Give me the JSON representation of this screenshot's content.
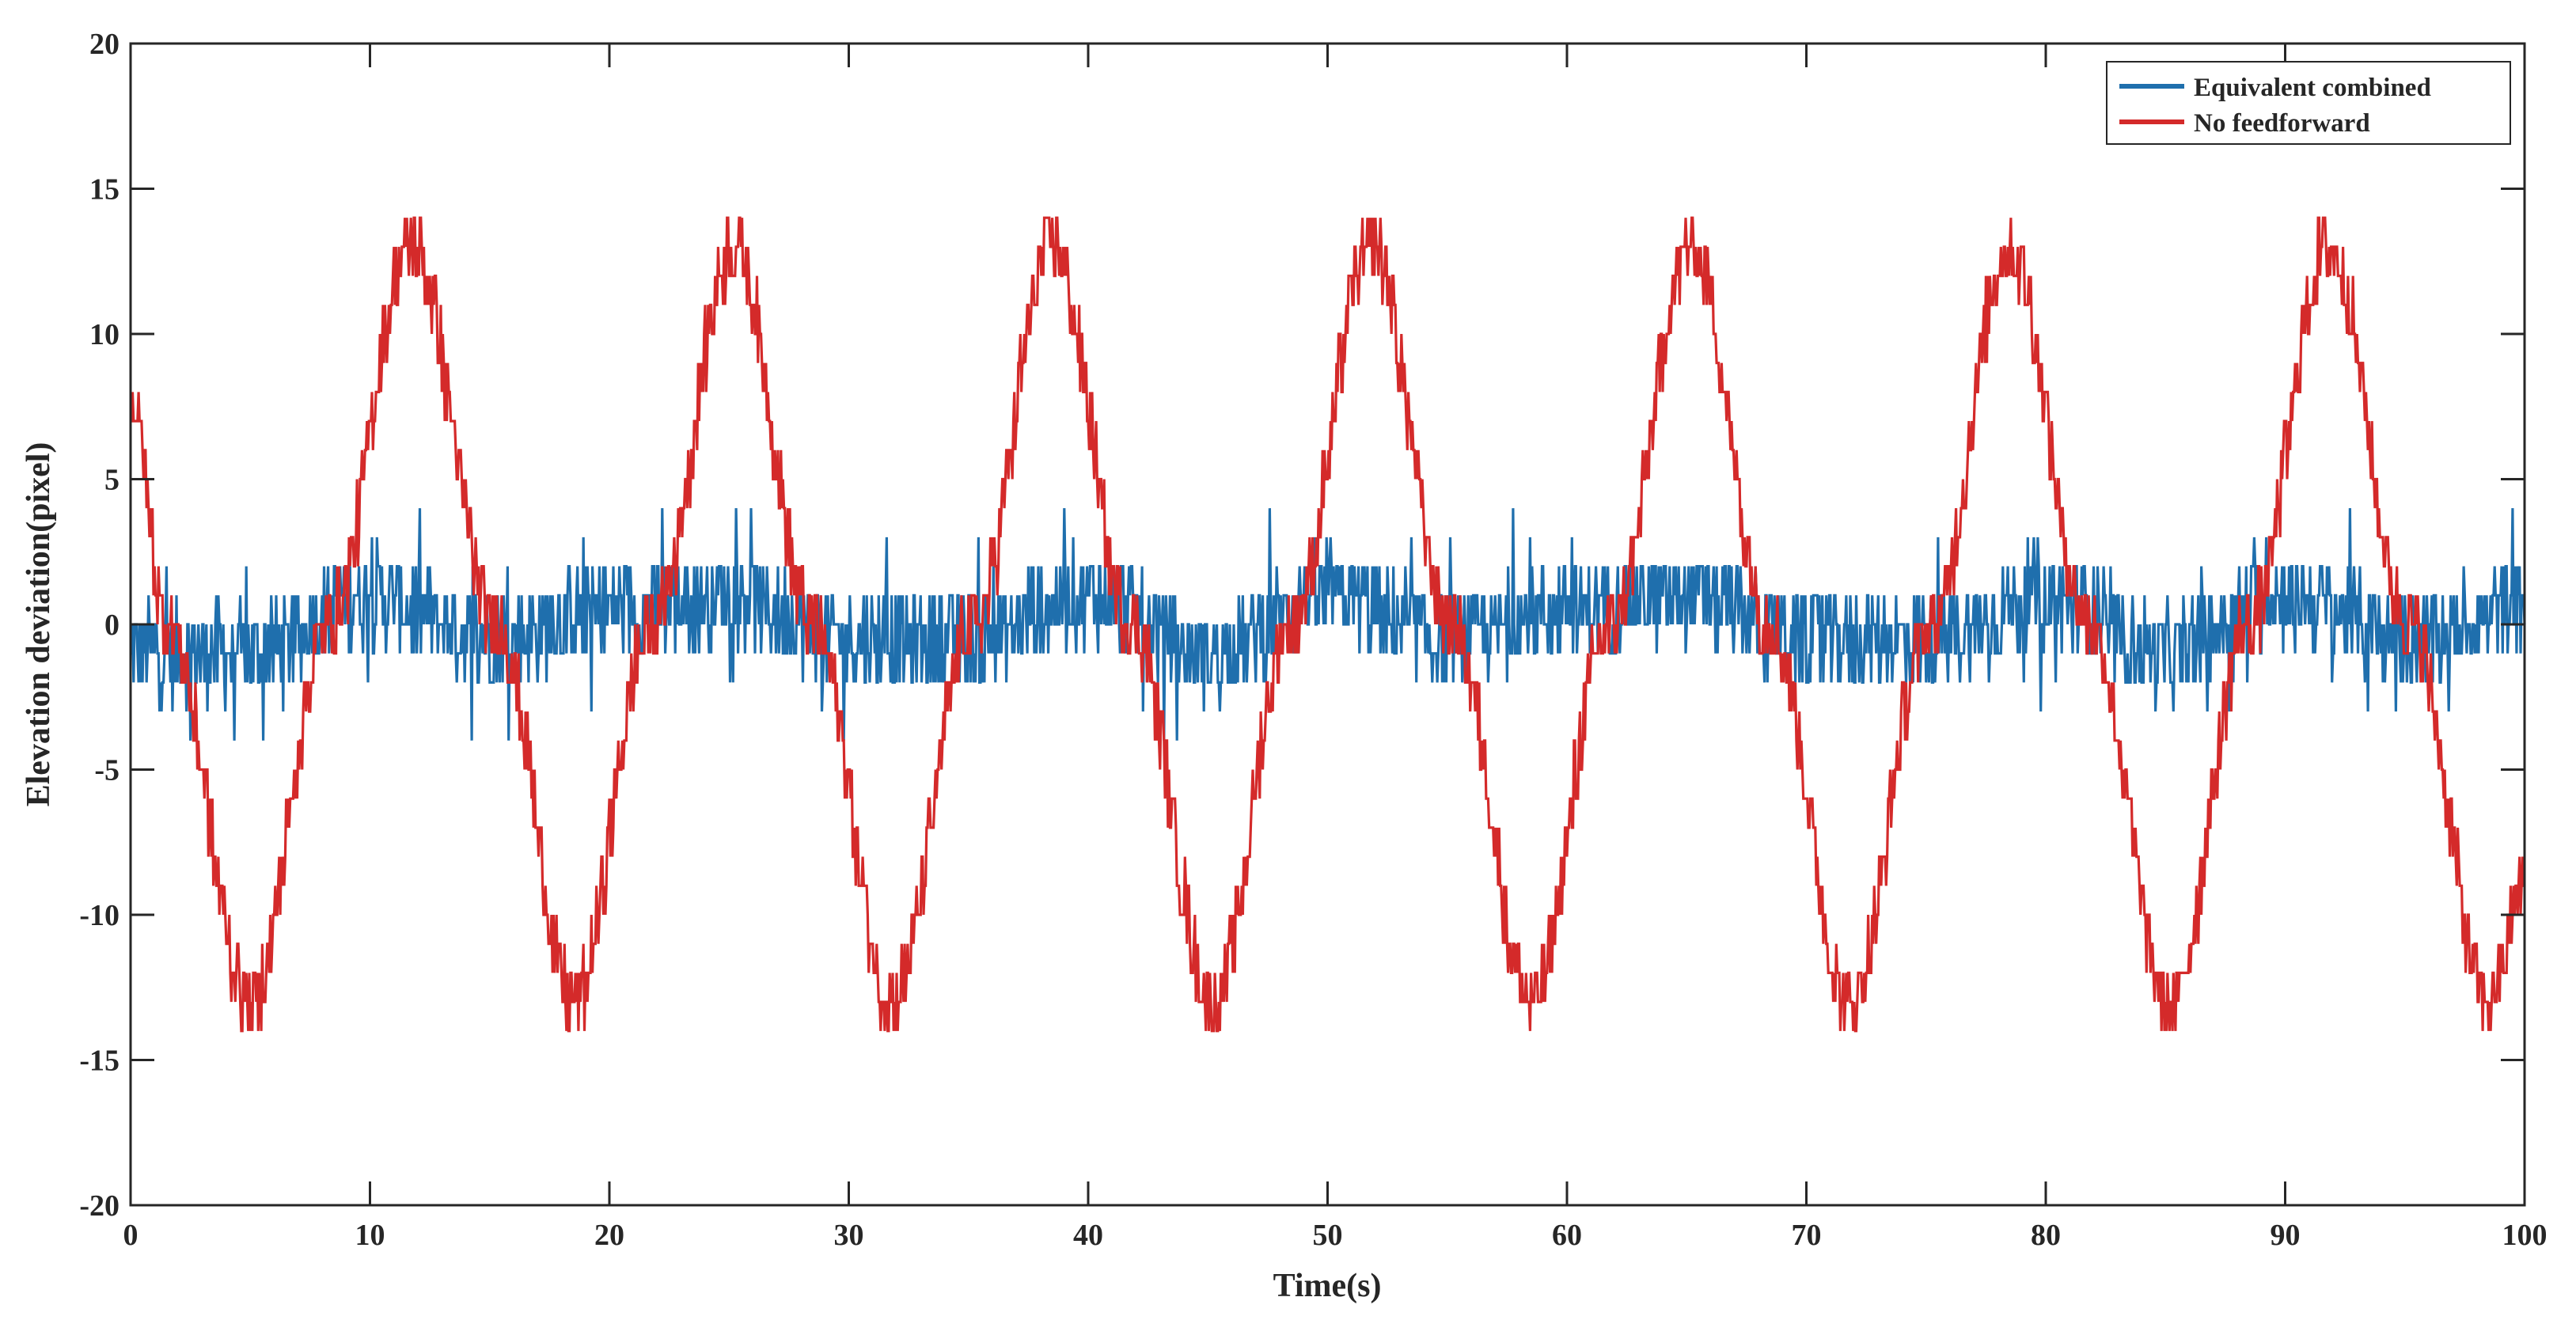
{
  "chart_data": {
    "type": "line",
    "title": "",
    "xlabel": "Time(s)",
    "ylabel": "Elevation deviation(pixel)",
    "xlim": [
      0,
      100
    ],
    "ylim": [
      -20,
      20
    ],
    "x_ticks": [
      0,
      10,
      20,
      30,
      40,
      50,
      60,
      70,
      80,
      90,
      100
    ],
    "y_ticks": [
      -20,
      -15,
      -10,
      -5,
      0,
      5,
      10,
      15,
      20
    ],
    "grid": false,
    "legend": {
      "placement": "top-right"
    },
    "series": [
      {
        "name": "Equivalent combined",
        "color": "#1f6fad",
        "description_x": [
          0,
          5,
          10,
          15,
          20,
          25,
          30,
          35,
          40,
          45,
          50,
          55,
          60,
          65,
          70,
          75,
          80,
          85,
          90,
          95,
          100
        ],
        "values": [
          -1,
          -1,
          1,
          -0.5,
          0.5,
          1,
          -0.5,
          -0.5,
          1,
          -1,
          1,
          -0.5,
          0.5,
          1,
          -0.5,
          -0.5,
          1,
          -1,
          1,
          -0.5,
          0.5
        ]
      },
      {
        "name": "No feedforward",
        "color": "#d42a2a",
        "description_x": [
          0,
          1.5,
          5,
          8.3,
          11.7,
          15.3,
          18.5,
          21.8,
          25.2,
          28.5,
          31.8,
          35.2,
          38.5,
          41.8,
          45.2,
          48.5,
          51.8,
          55.2,
          58.5,
          61.8,
          65.2,
          68.5,
          71.8,
          75.2,
          78.5,
          81.8,
          85.2,
          88.5,
          91.8,
          95.2,
          98.5,
          100
        ],
        "values": [
          8,
          0,
          -13,
          0,
          13,
          0,
          -13,
          0,
          13,
          0,
          -13,
          0,
          13,
          0,
          -13,
          0,
          13,
          0,
          -13,
          0,
          13,
          0,
          -13,
          0,
          13,
          0,
          -13,
          0,
          13,
          0,
          -13,
          -9
        ]
      }
    ]
  }
}
